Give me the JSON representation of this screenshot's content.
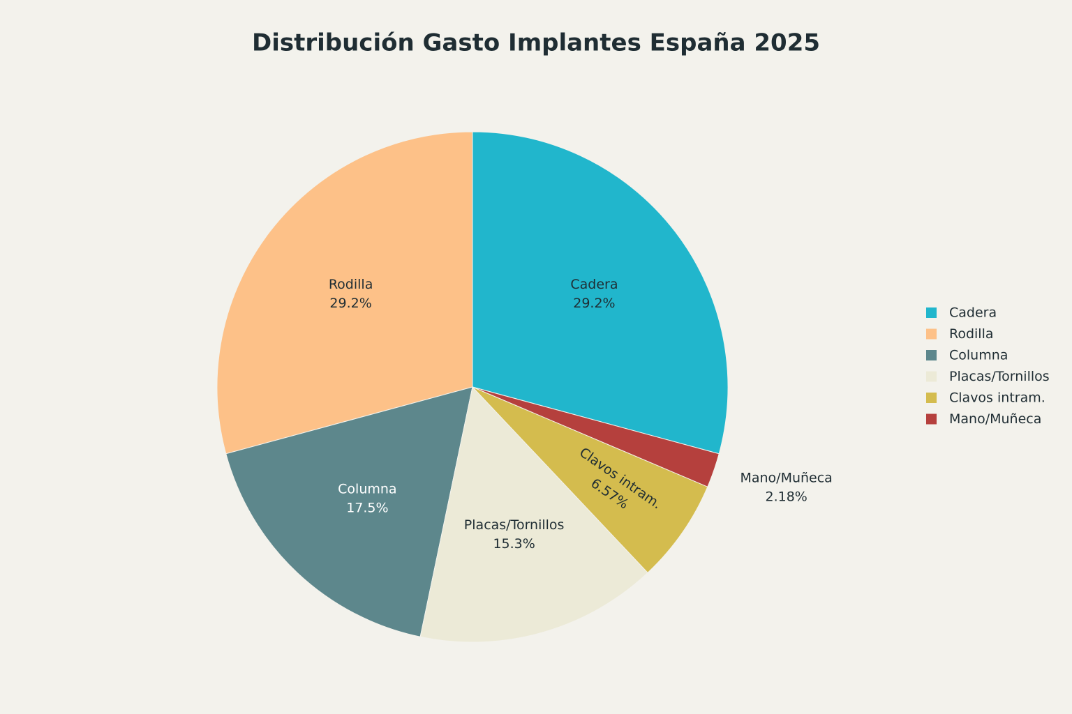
{
  "chart_data": {
    "type": "pie",
    "title": "Distribución Gasto Implantes España 2025",
    "direction": "counterclockwise",
    "categories": [
      "Cadera",
      "Rodilla",
      "Columna",
      "Placas/Tornillos",
      "Clavos intram.",
      "Mano/Muñeca"
    ],
    "values": [
      29.2,
      29.2,
      17.5,
      15.3,
      6.57,
      2.18
    ],
    "value_labels": [
      "29.2%",
      "29.2%",
      "17.5%",
      "15.3%",
      "6.57%",
      "2.18%"
    ],
    "colors": [
      "#21b6cc",
      "#fdc188",
      "#5d878c",
      "#ecead7",
      "#d4bc4e",
      "#b5403d"
    ],
    "legend": "right"
  }
}
